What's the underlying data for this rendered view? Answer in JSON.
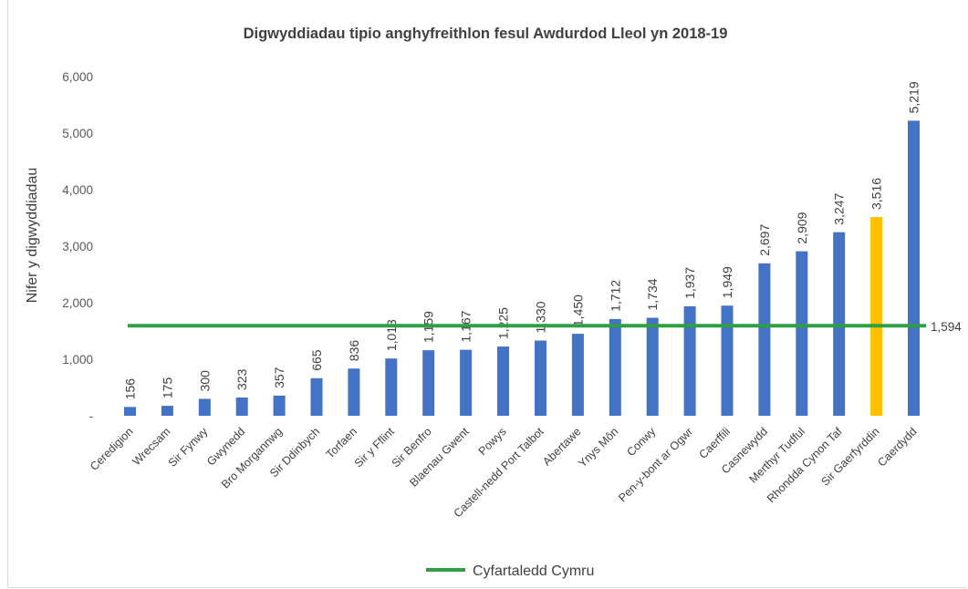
{
  "chart_data": {
    "type": "bar",
    "title": "Digwyddiadau tipio anghyfreithlon fesul Awdurdod Lleol yn 2018-19",
    "xlabel": "",
    "ylabel": "Nifer y digwyddiadau",
    "ylim": [
      0,
      6000
    ],
    "yticks": [
      0,
      1000,
      2000,
      3000,
      4000,
      5000,
      6000
    ],
    "ytick_labels": [
      "-",
      "1,000",
      "2,000",
      "3,000",
      "4,000",
      "5,000",
      "6,000"
    ],
    "categories": [
      "Ceredigion",
      "Wrecsam",
      "Sir Fynwy",
      "Gwynedd",
      "Bro Morgannwg",
      "Sir Ddinbych",
      "Torfaen",
      "Sir y Fflint",
      "Sir Benfro",
      "Blaenau Gwent",
      "Powys",
      "Castell-nedd Port Talbot",
      "Abertawe",
      "Ynys Môn",
      "Conwy",
      "Pen-y-bont ar Ogwr",
      "Caerffili",
      "Casnewydd",
      "Merthyr Tudful",
      "Rhondda Cynon Taf",
      "Sir Gaerfyrddin",
      "Caerdydd"
    ],
    "values": [
      156,
      175,
      300,
      323,
      357,
      665,
      836,
      1013,
      1159,
      1167,
      1225,
      1330,
      1450,
      1712,
      1734,
      1937,
      1949,
      2697,
      2909,
      3247,
      3516,
      5219
    ],
    "value_labels": [
      "156",
      "175",
      "300",
      "323",
      "357",
      "665",
      "836",
      "1,013",
      "1,159",
      "1,167",
      "1,225",
      "1,330",
      "1,450",
      "1,712",
      "1,734",
      "1,937",
      "1,949",
      "2,697",
      "2,909",
      "3,247",
      "3,516",
      "5,219"
    ],
    "bar_color": "#4472C4",
    "highlight_category": "Sir Gaerfyrddin",
    "highlight_color": "#FFC000",
    "average": {
      "name": "Cyfartaledd Cymru",
      "value": 1594,
      "label": "1,594",
      "color": "#2EA043"
    },
    "grid": false,
    "legend_position": "bottom"
  }
}
